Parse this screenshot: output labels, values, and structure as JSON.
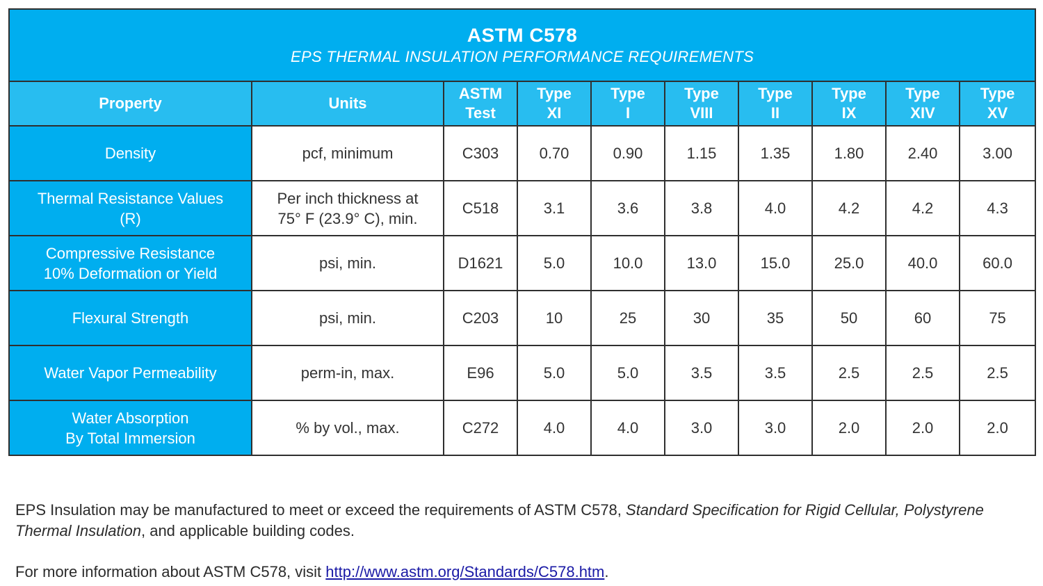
{
  "table": {
    "title": "ASTM C578",
    "subtitle": "EPS THERMAL INSULATION PERFORMANCE REQUIREMENTS",
    "headers": [
      {
        "l1": "Property",
        "l2": ""
      },
      {
        "l1": "Units",
        "l2": ""
      },
      {
        "l1": "ASTM",
        "l2": "Test"
      },
      {
        "l1": "Type",
        "l2": "XI"
      },
      {
        "l1": "Type",
        "l2": "I"
      },
      {
        "l1": "Type",
        "l2": "VIII"
      },
      {
        "l1": "Type",
        "l2": "II"
      },
      {
        "l1": "Type",
        "l2": "IX"
      },
      {
        "l1": "Type",
        "l2": "XIV"
      },
      {
        "l1": "Type",
        "l2": "XV"
      }
    ],
    "rows": [
      {
        "property": {
          "l1": "Density",
          "l2": ""
        },
        "units": {
          "l1": "pcf, minimum",
          "l2": ""
        },
        "test": "C303",
        "values": [
          "0.70",
          "0.90",
          "1.15",
          "1.35",
          "1.80",
          "2.40",
          "3.00"
        ]
      },
      {
        "property": {
          "l1": "Thermal Resistance Values",
          "l2": "(R)"
        },
        "units": {
          "l1": "Per inch thickness at",
          "l2": "75° F (23.9° C), min."
        },
        "test": "C518",
        "values": [
          "3.1",
          "3.6",
          "3.8",
          "4.0",
          "4.2",
          "4.2",
          "4.3"
        ]
      },
      {
        "property": {
          "l1": "Compressive Resistance",
          "l2": "10% Deformation or Yield"
        },
        "units": {
          "l1": "psi, min.",
          "l2": ""
        },
        "test": "D1621",
        "values": [
          "5.0",
          "10.0",
          "13.0",
          "15.0",
          "25.0",
          "40.0",
          "60.0"
        ]
      },
      {
        "property": {
          "l1": "Flexural Strength",
          "l2": ""
        },
        "units": {
          "l1": "psi, min.",
          "l2": ""
        },
        "test": "C203",
        "values": [
          "10",
          "25",
          "30",
          "35",
          "50",
          "60",
          "75"
        ]
      },
      {
        "property": {
          "l1": "Water Vapor Permeability",
          "l2": ""
        },
        "units": {
          "l1": "perm-in, max.",
          "l2": ""
        },
        "test": "E96",
        "values": [
          "5.0",
          "5.0",
          "3.5",
          "3.5",
          "2.5",
          "2.5",
          "2.5"
        ]
      },
      {
        "property": {
          "l1": "Water Absorption",
          "l2": "By Total Immersion"
        },
        "units": {
          "l1": "% by vol., max.",
          "l2": ""
        },
        "test": "C272",
        "values": [
          "4.0",
          "4.0",
          "3.0",
          "3.0",
          "2.0",
          "2.0",
          "2.0"
        ]
      }
    ]
  },
  "footnote1": {
    "pre": "EPS Insulation may be manufactured to meet or exceed the requirements of ASTM C578, ",
    "italic": "Standard Specification for Rigid Cellular, Polystyrene Thermal Insulation",
    "post": ", and applicable building codes."
  },
  "footnote2": {
    "pre": "For more information about ASTM C578, visit ",
    "link": "http://www.astm.org/Standards/C578.htm",
    "post": "."
  },
  "colors": {
    "title_bg": "#00aeef",
    "header_bg": "#28bdf0",
    "property_bg": "#00aeef",
    "border": "#2f2f2f",
    "link": "#1a1aa6"
  }
}
